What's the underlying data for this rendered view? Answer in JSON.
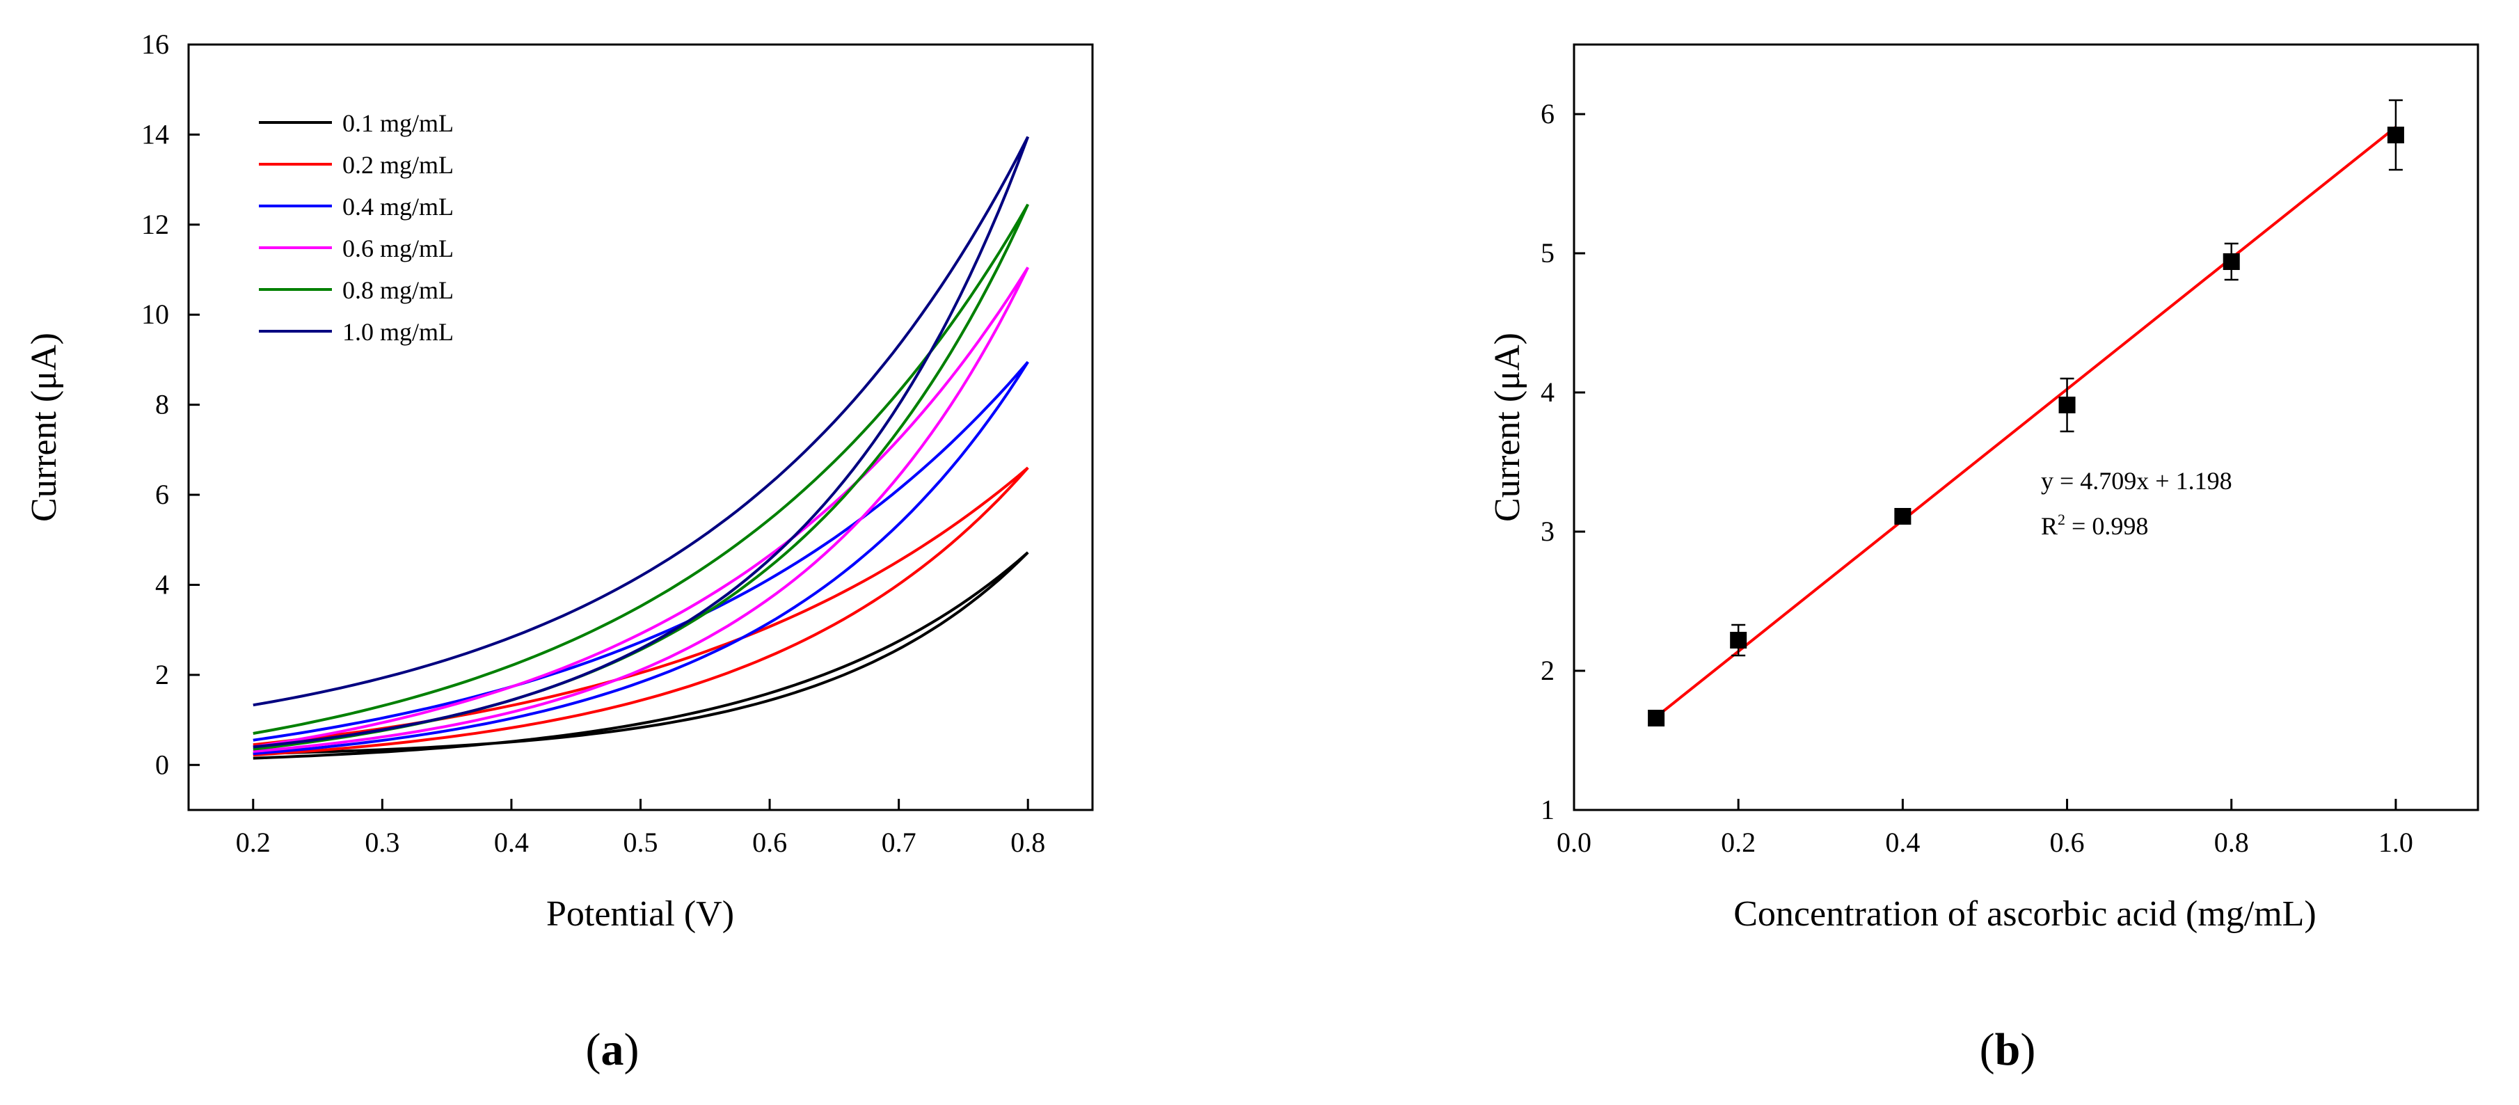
{
  "chart_data": [
    {
      "panel": "a",
      "type": "line",
      "title": "",
      "xlabel": "Potential (V)",
      "ylabel_main": "Current (",
      "ylabel_unit": "μA",
      "ylabel_close": ")",
      "xlim": [
        0.15,
        0.85
      ],
      "ylim": [
        -1,
        16
      ],
      "xticks": [
        0.2,
        0.3,
        0.4,
        0.5,
        0.6,
        0.7,
        0.8
      ],
      "xtick_labels": [
        "0.2",
        "0.3",
        "0.4",
        "0.5",
        "0.6",
        "0.7",
        "0.8"
      ],
      "yticks": [
        0,
        2,
        4,
        6,
        8,
        10,
        12,
        14,
        16
      ],
      "ytick_labels": [
        "0",
        "2",
        "4",
        "6",
        "8",
        "10",
        "12",
        "14",
        "16"
      ],
      "grid": false,
      "legend_position": "top-left",
      "series": [
        {
          "name": "0.1 mg/mL",
          "color": "#000000",
          "start_forward": 0.15,
          "start_backward": 0.25,
          "end": 4.72,
          "curve_forward": 3.2,
          "curve_backward": 3.8
        },
        {
          "name": "0.2 mg/mL",
          "color": "#ff0000",
          "start_forward": 0.22,
          "start_backward": 0.45,
          "end": 6.6,
          "curve_forward": 2.9,
          "curve_backward": 2.1
        },
        {
          "name": "0.4 mg/mL",
          "color": "#0000ff",
          "start_forward": 0.25,
          "start_backward": 0.55,
          "end": 8.95,
          "curve_forward": 3.0,
          "curve_backward": 2.1
        },
        {
          "name": "0.6 mg/mL",
          "color": "#ff00ff",
          "start_forward": 0.3,
          "start_backward": 0.4,
          "end": 11.05,
          "curve_forward": 3.2,
          "curve_backward": 2.35
        },
        {
          "name": "0.8 mg/mL",
          "color": "#008000",
          "start_forward": 0.35,
          "start_backward": 0.7,
          "end": 12.45,
          "curve_forward": 3.0,
          "curve_backward": 2.3
        },
        {
          "name": "1.0 mg/mL",
          "color": "#000080",
          "start_forward": 0.4,
          "start_backward": 1.33,
          "end": 13.95,
          "curve_forward": 3.3,
          "curve_backward": 2.45
        }
      ]
    },
    {
      "panel": "b",
      "type": "scatter",
      "title": "",
      "xlabel": "Concentration of ascorbic acid (mg/mL)",
      "ylabel_main": "Current (",
      "ylabel_unit": "μA",
      "ylabel_close": ")",
      "xlim": [
        0.0,
        1.1
      ],
      "ylim": [
        1,
        6.5
      ],
      "xticks": [
        0.0,
        0.2,
        0.4,
        0.6,
        0.8,
        1.0
      ],
      "xtick_labels": [
        "0.0",
        "0.2",
        "0.4",
        "0.6",
        "0.8",
        "1.0"
      ],
      "yticks": [
        1,
        2,
        3,
        4,
        5,
        6
      ],
      "ytick_labels": [
        "1",
        "2",
        "3",
        "4",
        "5",
        "6"
      ],
      "grid": false,
      "x": [
        0.1,
        0.2,
        0.4,
        0.6,
        0.8,
        1.0
      ],
      "y": [
        1.66,
        2.22,
        3.11,
        3.91,
        4.94,
        5.85
      ],
      "yerr": [
        0.03,
        0.11,
        0.04,
        0.19,
        0.13,
        0.25
      ],
      "marker_color": "#000000",
      "fit": {
        "slope": 4.709,
        "intercept": 1.198,
        "color": "#ff0000",
        "x_range": [
          0.1,
          1.0
        ]
      },
      "annotation_equation": "y = 4.709x + 1.198",
      "annotation_r2_prefix": "R",
      "annotation_r2_sup": "2",
      "annotation_r2_value": " = 0.998",
      "annotation_position": "center-right"
    }
  ],
  "captions": {
    "a": {
      "open": "(",
      "letter": "a",
      "close": ")"
    },
    "b": {
      "open": "(",
      "letter": "b",
      "close": ")"
    }
  }
}
